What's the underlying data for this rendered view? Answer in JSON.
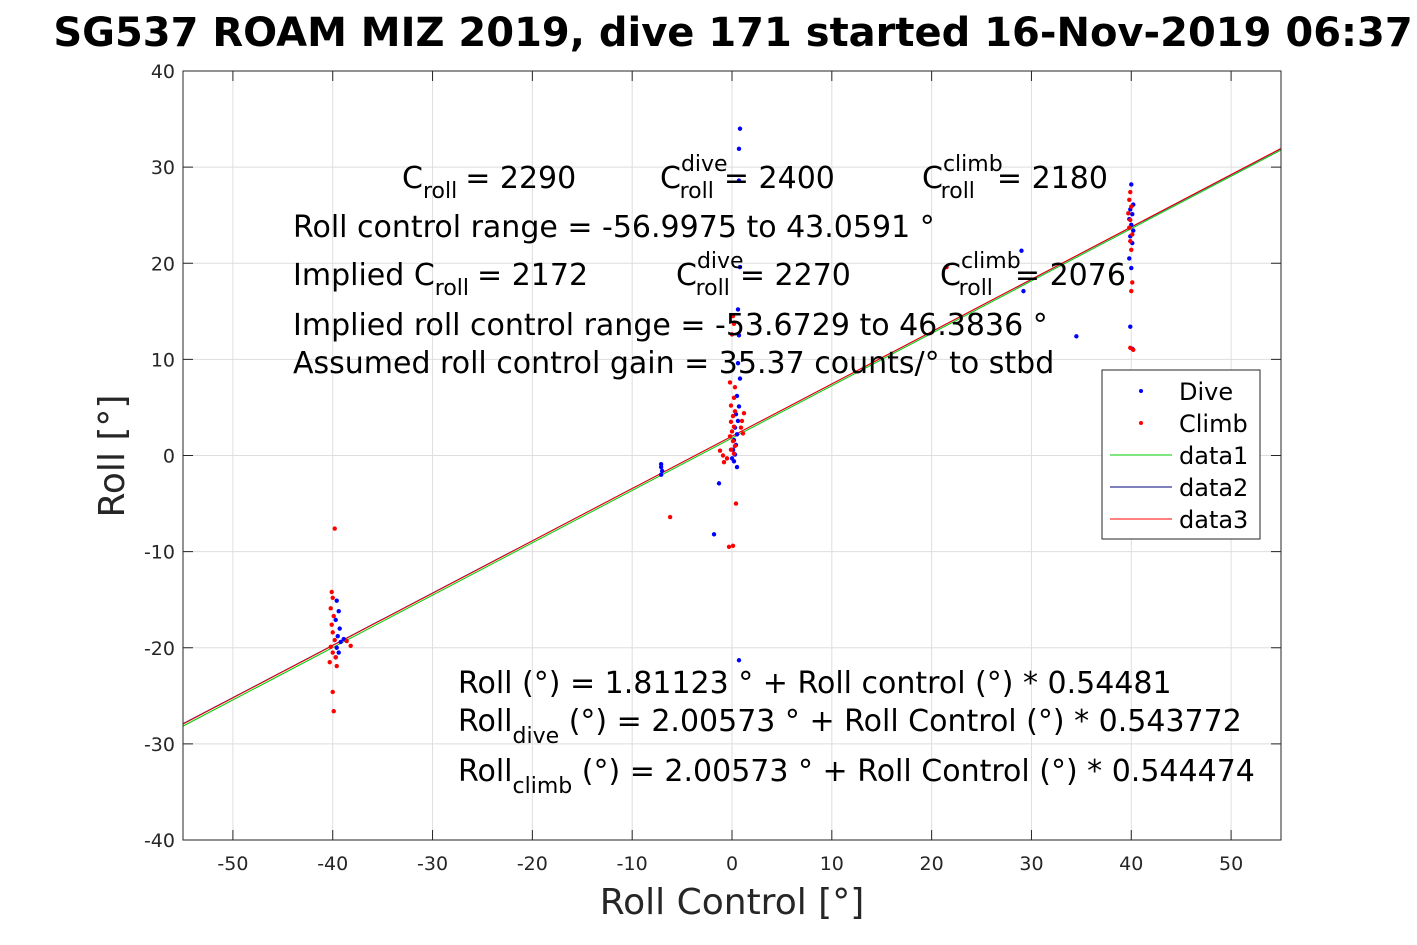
{
  "chart_data": {
    "type": "scatter",
    "title": "SG537 ROAM MIZ 2019, dive 171 started 16-Nov-2019 06:37",
    "xlabel": "Roll Control [°]",
    "ylabel": "Roll [°]",
    "xlim": [
      -55,
      55
    ],
    "ylim": [
      -40,
      40
    ],
    "xticks": [
      -50,
      -40,
      -30,
      -20,
      -10,
      0,
      10,
      20,
      30,
      40,
      50
    ],
    "yticks": [
      -40,
      -30,
      -20,
      -10,
      0,
      10,
      20,
      30,
      40
    ],
    "grid": true,
    "legend_position": "right",
    "series": [
      {
        "name": "Dive",
        "kind": "points",
        "color": "#0000ff",
        "points": [
          [
            0.8,
            34.0
          ],
          [
            0.7,
            31.9
          ],
          [
            0.7,
            28.6
          ],
          [
            0.8,
            19.6
          ],
          [
            0.6,
            15.2
          ],
          [
            0.7,
            12.5
          ],
          [
            0.6,
            9.6
          ],
          [
            0.8,
            8.0
          ],
          [
            0.5,
            6.2
          ],
          [
            0.7,
            5.1
          ],
          [
            0.4,
            4.3
          ],
          [
            0.6,
            3.6
          ],
          [
            0.3,
            2.9
          ],
          [
            0.5,
            2.2
          ],
          [
            0.2,
            1.6
          ],
          [
            0.4,
            1.1
          ],
          [
            0.1,
            0.6
          ],
          [
            0.3,
            0.1
          ],
          [
            0.0,
            -0.3
          ],
          [
            0.2,
            -0.6
          ],
          [
            0.5,
            -1.2
          ],
          [
            -1.3,
            -2.9
          ],
          [
            -1.8,
            -8.2
          ],
          [
            0.7,
            -21.3
          ],
          [
            -7.1,
            -0.9
          ],
          [
            -7.1,
            -1.2
          ],
          [
            -7.0,
            -1.6
          ],
          [
            -7.1,
            -2.0
          ],
          [
            29.0,
            21.3
          ],
          [
            29.2,
            17.1
          ],
          [
            34.5,
            12.4
          ],
          [
            40.0,
            28.2
          ],
          [
            40.2,
            26.1
          ],
          [
            39.9,
            25.6
          ],
          [
            40.1,
            25.1
          ],
          [
            39.8,
            24.6
          ],
          [
            40.0,
            24.0
          ],
          [
            40.2,
            23.4
          ],
          [
            39.9,
            22.8
          ],
          [
            40.1,
            22.1
          ],
          [
            39.8,
            20.5
          ],
          [
            40.0,
            19.5
          ],
          [
            39.9,
            13.4
          ],
          [
            40.1,
            11.1
          ],
          [
            -39.6,
            -15.1
          ],
          [
            -39.4,
            -16.2
          ],
          [
            -39.7,
            -17.1
          ],
          [
            -39.3,
            -18.0
          ],
          [
            -39.5,
            -18.8
          ],
          [
            -39.2,
            -19.4
          ],
          [
            -39.6,
            -20.0
          ],
          [
            -39.4,
            -20.5
          ],
          [
            -38.9,
            -19.1
          ],
          [
            -39.7,
            -21.0
          ]
        ]
      },
      {
        "name": "Climb",
        "kind": "points",
        "color": "#ff0000",
        "points": [
          [
            0.1,
            14.5
          ],
          [
            0.2,
            13.7
          ],
          [
            0.0,
            12.6
          ],
          [
            -0.2,
            7.6
          ],
          [
            0.3,
            7.1
          ],
          [
            0.2,
            6.0
          ],
          [
            -0.1,
            5.2
          ],
          [
            0.3,
            4.6
          ],
          [
            0.1,
            4.1
          ],
          [
            -0.1,
            3.5
          ],
          [
            0.2,
            3.0
          ],
          [
            0.0,
            2.5
          ],
          [
            -0.2,
            2.0
          ],
          [
            0.1,
            1.5
          ],
          [
            0.3,
            1.0
          ],
          [
            -0.1,
            0.6
          ],
          [
            0.2,
            0.2
          ],
          [
            -0.5,
            -0.3
          ],
          [
            -0.9,
            0.0
          ],
          [
            -1.2,
            0.5
          ],
          [
            -0.8,
            -0.7
          ],
          [
            1.0,
            3.6
          ],
          [
            1.2,
            4.4
          ],
          [
            0.9,
            2.9
          ],
          [
            1.1,
            2.3
          ],
          [
            -6.2,
            -6.4
          ],
          [
            0.1,
            -9.4
          ],
          [
            -0.3,
            -9.5
          ],
          [
            0.4,
            -5.0
          ],
          [
            21.5,
            19.6
          ],
          [
            39.9,
            27.4
          ],
          [
            39.8,
            26.6
          ],
          [
            40.0,
            25.9
          ],
          [
            39.7,
            25.2
          ],
          [
            39.9,
            24.5
          ],
          [
            39.8,
            23.7
          ],
          [
            40.1,
            23.0
          ],
          [
            39.9,
            22.3
          ],
          [
            40.0,
            21.4
          ],
          [
            40.1,
            18.0
          ],
          [
            40.0,
            17.1
          ],
          [
            39.9,
            11.2
          ],
          [
            40.2,
            11.0
          ],
          [
            -39.8,
            -7.6
          ],
          [
            -40.1,
            -14.2
          ],
          [
            -40.0,
            -14.8
          ],
          [
            -40.2,
            -15.9
          ],
          [
            -39.9,
            -16.7
          ],
          [
            -40.1,
            -17.6
          ],
          [
            -40.0,
            -18.4
          ],
          [
            -39.8,
            -19.2
          ],
          [
            -40.2,
            -19.9
          ],
          [
            -40.0,
            -20.5
          ],
          [
            -39.7,
            -21.0
          ],
          [
            -40.3,
            -21.5
          ],
          [
            -39.6,
            -21.9
          ],
          [
            -38.2,
            -19.8
          ],
          [
            -38.6,
            -19.3
          ],
          [
            -40.0,
            -24.6
          ],
          [
            -39.9,
            -26.6
          ]
        ]
      },
      {
        "name": "data1",
        "kind": "line",
        "color": "#00cc00",
        "intercept": 1.81123,
        "slope": 0.54481
      },
      {
        "name": "data2",
        "kind": "line",
        "color": "#00007f",
        "intercept": 2.00573,
        "slope": 0.543772
      },
      {
        "name": "data3",
        "kind": "line",
        "color": "#ff0000",
        "intercept": 2.00573,
        "slope": 0.544474
      }
    ],
    "annotations": {
      "c_roll": {
        "main": "C",
        "sub": "roll",
        "value": "= 2290"
      },
      "c_dive": {
        "main": "C",
        "sup": "dive",
        "sub": "roll",
        "value": "= 2400"
      },
      "c_climb": {
        "main": "C",
        "sup": "climb",
        "sub": "roll",
        "value": "= 2180"
      },
      "range": "Roll control range = -56.9975 to 43.0591 °",
      "implied_c_roll": {
        "main": "Implied C",
        "sub": "roll",
        "value": "= 2172"
      },
      "implied_c_dive": {
        "main": "C",
        "sup": "dive",
        "sub": "roll",
        "value": "= 2270"
      },
      "implied_c_climb": {
        "main": "C",
        "sup": "climb",
        "sub": "roll",
        "value": "= 2076"
      },
      "implied_range": "Implied roll control range = -53.6729 to 46.3836 °",
      "gain": "Assumed roll control gain = 35.37 counts/° to stbd",
      "fit_all": "Roll (°) = 1.81123 ° + Roll control (°) * 0.54481",
      "fit_dive": {
        "main": "Roll",
        "sub": "dive",
        "value": " (°) = 2.00573 ° + Roll Control (°) * 0.543772"
      },
      "fit_climb": {
        "main": "Roll",
        "sub": "climb",
        "value": " (°) = 2.00573 ° + Roll Control (°) * 0.544474"
      }
    }
  }
}
